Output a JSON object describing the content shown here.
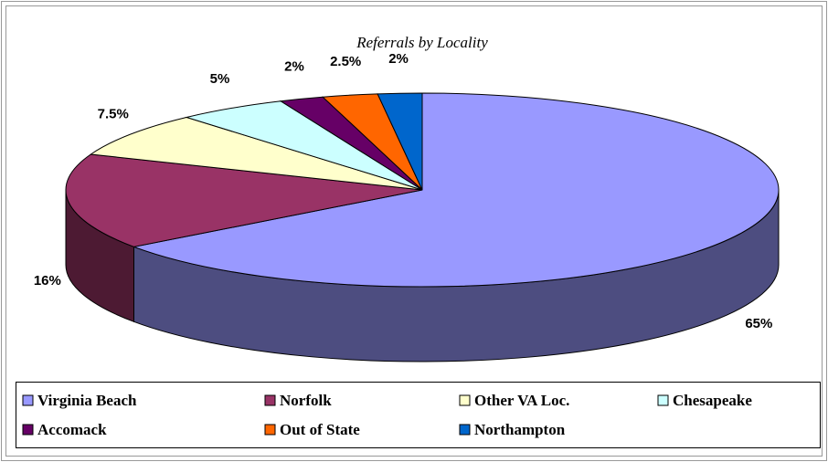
{
  "chart_data": {
    "type": "pie3d",
    "title": "Referrals by Locality",
    "categories": [
      "Virginia Beach",
      "Norfolk",
      "Other VA Loc.",
      "Chesapeake",
      "Accomack",
      "Out of State",
      "Northampton"
    ],
    "values": [
      65,
      16,
      7.5,
      5,
      2,
      2.5,
      2
    ],
    "value_labels": [
      "65%",
      "16%",
      "7.5%",
      "5%",
      "2%",
      "2.5%",
      "2%"
    ],
    "colors": [
      "#9999ff",
      "#993366",
      "#ffffcc",
      "#ccffff",
      "#660066",
      "#ff6600",
      "#0066cc"
    ],
    "legend": "bottom"
  }
}
